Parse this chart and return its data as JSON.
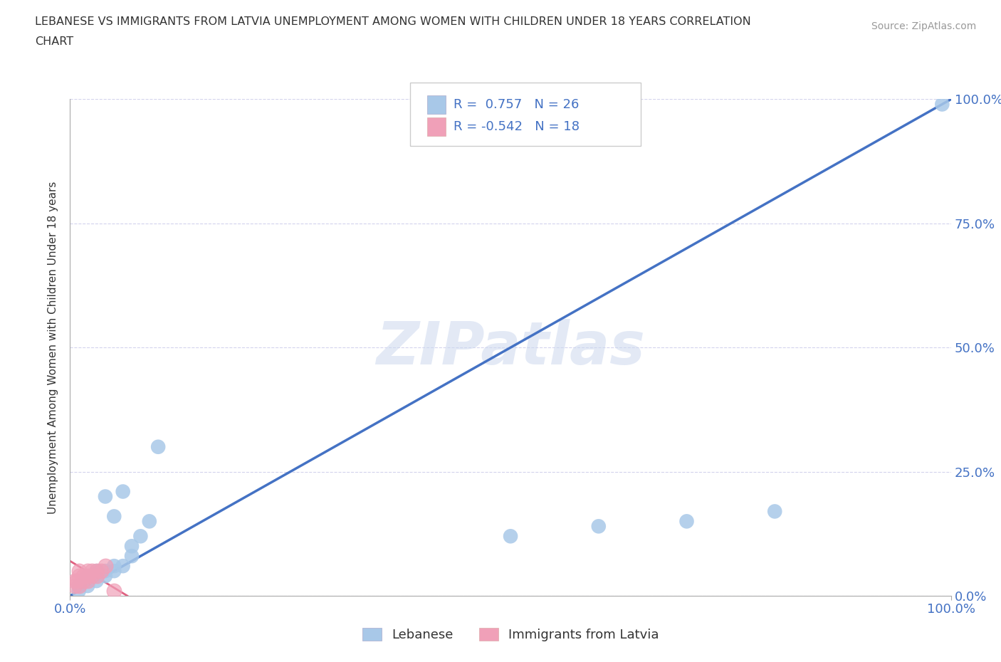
{
  "title_line1": "LEBANESE VS IMMIGRANTS FROM LATVIA UNEMPLOYMENT AMONG WOMEN WITH CHILDREN UNDER 18 YEARS CORRELATION",
  "title_line2": "CHART",
  "source": "Source: ZipAtlas.com",
  "ylabel": "Unemployment Among Women with Children Under 18 years",
  "xlim": [
    0,
    1.0
  ],
  "ylim": [
    0,
    1.0
  ],
  "xtick_labels": [
    "0.0%",
    "100.0%"
  ],
  "ytick_labels": [
    "0.0%",
    "25.0%",
    "50.0%",
    "75.0%",
    "100.0%"
  ],
  "ytick_positions": [
    0.0,
    0.25,
    0.5,
    0.75,
    1.0
  ],
  "xtick_positions": [
    0.0,
    1.0
  ],
  "grid_color": "#c8c8e8",
  "background_color": "#ffffff",
  "watermark": "ZIPatlas",
  "lebanese_R": 0.757,
  "lebanese_N": 26,
  "latvian_R": -0.542,
  "latvian_N": 18,
  "lebanese_color": "#a8c8e8",
  "latvian_color": "#f0a0b8",
  "trendline_blue_color": "#4472c4",
  "trendline_pink_color": "#e06080",
  "lebanese_x": [
    0.01,
    0.01,
    0.02,
    0.02,
    0.02,
    0.03,
    0.03,
    0.03,
    0.04,
    0.04,
    0.04,
    0.05,
    0.05,
    0.05,
    0.06,
    0.06,
    0.07,
    0.07,
    0.08,
    0.09,
    0.1,
    0.5,
    0.6,
    0.7,
    0.8,
    0.99
  ],
  "lebanese_y": [
    0.01,
    0.02,
    0.02,
    0.03,
    0.04,
    0.03,
    0.04,
    0.05,
    0.04,
    0.05,
    0.2,
    0.05,
    0.06,
    0.16,
    0.06,
    0.21,
    0.08,
    0.1,
    0.12,
    0.15,
    0.3,
    0.12,
    0.14,
    0.15,
    0.17,
    0.99
  ],
  "latvian_x": [
    0.005,
    0.005,
    0.008,
    0.01,
    0.01,
    0.01,
    0.015,
    0.015,
    0.02,
    0.02,
    0.02,
    0.025,
    0.025,
    0.03,
    0.03,
    0.035,
    0.04,
    0.05
  ],
  "latvian_y": [
    0.02,
    0.03,
    0.03,
    0.02,
    0.04,
    0.05,
    0.03,
    0.04,
    0.03,
    0.04,
    0.05,
    0.04,
    0.05,
    0.04,
    0.05,
    0.05,
    0.06,
    0.01
  ],
  "lebanese_trendline_x": [
    0.0,
    1.0
  ],
  "lebanese_trendline_y": [
    0.0,
    1.0
  ],
  "latvian_trendline_x": [
    0.0,
    0.065
  ],
  "latvian_trendline_y": [
    0.07,
    0.0
  ],
  "legend_box_color_blue": "#a8c8e8",
  "legend_box_color_pink": "#f0a0b8",
  "legend_text_color": "#4472c4"
}
